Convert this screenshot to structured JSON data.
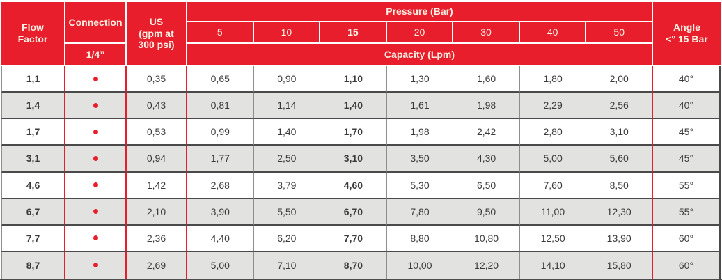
{
  "colors": {
    "brand_red": "#E81E2C",
    "header_text": "#F8EEE1",
    "row_alt_bg": "#E2E2E1",
    "data_text": "#3B3B3A",
    "grid_line_gray": "#8E8E8E",
    "grid_line_dark": "#4A4A4A"
  },
  "table": {
    "emphasized_pressure": "15",
    "header": {
      "flow_factor": "Flow\nFactor",
      "connection": "Connection",
      "connection_size": "1/4”",
      "us_gpm": "US\n(gpm at\n300 psi)",
      "pressure_group": "Pressure (Bar)",
      "pressure_values": [
        "5",
        "10",
        "15",
        "20",
        "30",
        "40",
        "50"
      ],
      "capacity_group": "Capacity (Lpm)",
      "angle": "Angle\n<°  15 Bar"
    },
    "rows": [
      {
        "flow": "1,1",
        "us": "0,35",
        "capacity": [
          "0,65",
          "0,90",
          "1,10",
          "1,30",
          "1,60",
          "1,80",
          "2,00"
        ],
        "angle": "40°"
      },
      {
        "flow": "1,4",
        "us": "0,43",
        "capacity": [
          "0,81",
          "1,14",
          "1,40",
          "1,61",
          "1,98",
          "2,29",
          "2,56"
        ],
        "angle": "40°"
      },
      {
        "flow": "1,7",
        "us": "0,53",
        "capacity": [
          "0,99",
          "1,40",
          "1,70",
          "1,98",
          "2,42",
          "2,80",
          "3,10"
        ],
        "angle": "45°"
      },
      {
        "flow": "3,1",
        "us": "0,94",
        "capacity": [
          "1,77",
          "2,50",
          "3,10",
          "3,50",
          "4,30",
          "5,00",
          "5,60"
        ],
        "angle": "45°"
      },
      {
        "flow": "4,6",
        "us": "1,42",
        "capacity": [
          "2,68",
          "3,79",
          "4,60",
          "5,30",
          "6,50",
          "7,60",
          "8,50"
        ],
        "angle": "55°"
      },
      {
        "flow": "6,7",
        "us": "2,10",
        "capacity": [
          "3,90",
          "5,50",
          "6,70",
          "7,80",
          "9,50",
          "11,00",
          "12,30"
        ],
        "angle": "55°"
      },
      {
        "flow": "7,7",
        "us": "2,36",
        "capacity": [
          "4,40",
          "6,20",
          "7,70",
          "8,80",
          "10,80",
          "12,50",
          "13,90"
        ],
        "angle": "60°"
      },
      {
        "flow": "8,7",
        "us": "2,69",
        "capacity": [
          "5,00",
          "7,10",
          "8,70",
          "10,00",
          "12,20",
          "14,10",
          "15,80"
        ],
        "angle": "60°"
      }
    ]
  }
}
